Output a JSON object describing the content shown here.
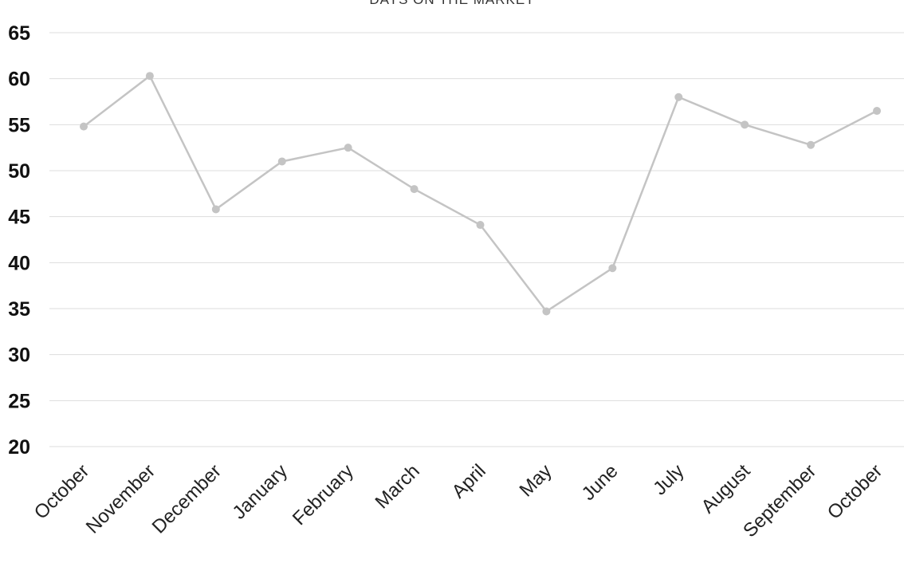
{
  "chart_data": {
    "type": "line",
    "title": "DAYS ON THE MARKET",
    "xlabel": "",
    "ylabel": "",
    "categories": [
      "October",
      "November",
      "December",
      "January",
      "February",
      "March",
      "April",
      "May",
      "June",
      "July",
      "August",
      "September",
      "October"
    ],
    "series": [
      {
        "values": [
          54.8,
          60.3,
          45.8,
          51.0,
          52.5,
          48.0,
          44.1,
          34.7,
          39.4,
          58.0,
          55.0,
          52.8,
          56.5
        ]
      }
    ],
    "ylim": [
      20,
      65
    ],
    "yticks": [
      20,
      25,
      30,
      35,
      40,
      45,
      50,
      55,
      60,
      65
    ],
    "grid": true,
    "colors": {
      "line": "#c4c4c4",
      "grid": "#dddddd"
    }
  }
}
